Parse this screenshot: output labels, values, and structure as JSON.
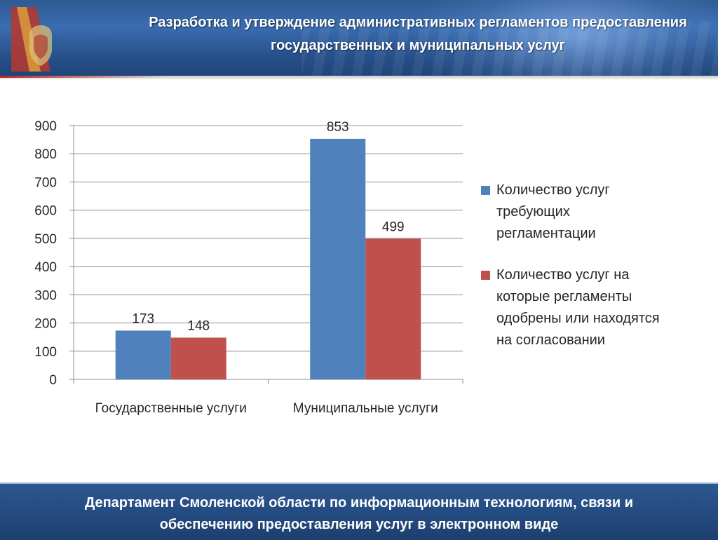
{
  "header": {
    "title_line1": "Разработка и утверждение административных регламентов предоставления",
    "title_line2": "государственных и муниципальных услуг"
  },
  "footer": {
    "line1": "Департамент Смоленской области по информационным технологиям, связи и",
    "line2": "обеспечению предоставления услуг в электронном виде"
  },
  "colors": {
    "series1": "#4f81bd",
    "series2": "#c0504d",
    "header_blue": "#2f5a93"
  },
  "chart_data": {
    "type": "bar",
    "categories": [
      "Государственные услуги",
      "Муниципальные услуги"
    ],
    "series": [
      {
        "name": "Количество услуг требующих регламентации",
        "values": [
          173,
          853
        ],
        "color": "#4f81bd"
      },
      {
        "name": "Количество услуг на которые регламенты одобрены или находятся на согласовании",
        "values": [
          148,
          499
        ],
        "color": "#c0504d"
      }
    ],
    "yticks": [
      "0",
      "100",
      "200",
      "300",
      "400",
      "500",
      "600",
      "700",
      "800",
      "900"
    ],
    "ylim": [
      0,
      900
    ],
    "grid": true,
    "legend_position": "right",
    "data_labels": true
  },
  "legend": {
    "items": [
      {
        "lines": [
          "Количество услуг",
          "требующих",
          "регламентации"
        ]
      },
      {
        "lines": [
          "Количество услуг на",
          "которые регламенты",
          "одобрены или находятся",
          "на согласовании"
        ]
      }
    ]
  }
}
